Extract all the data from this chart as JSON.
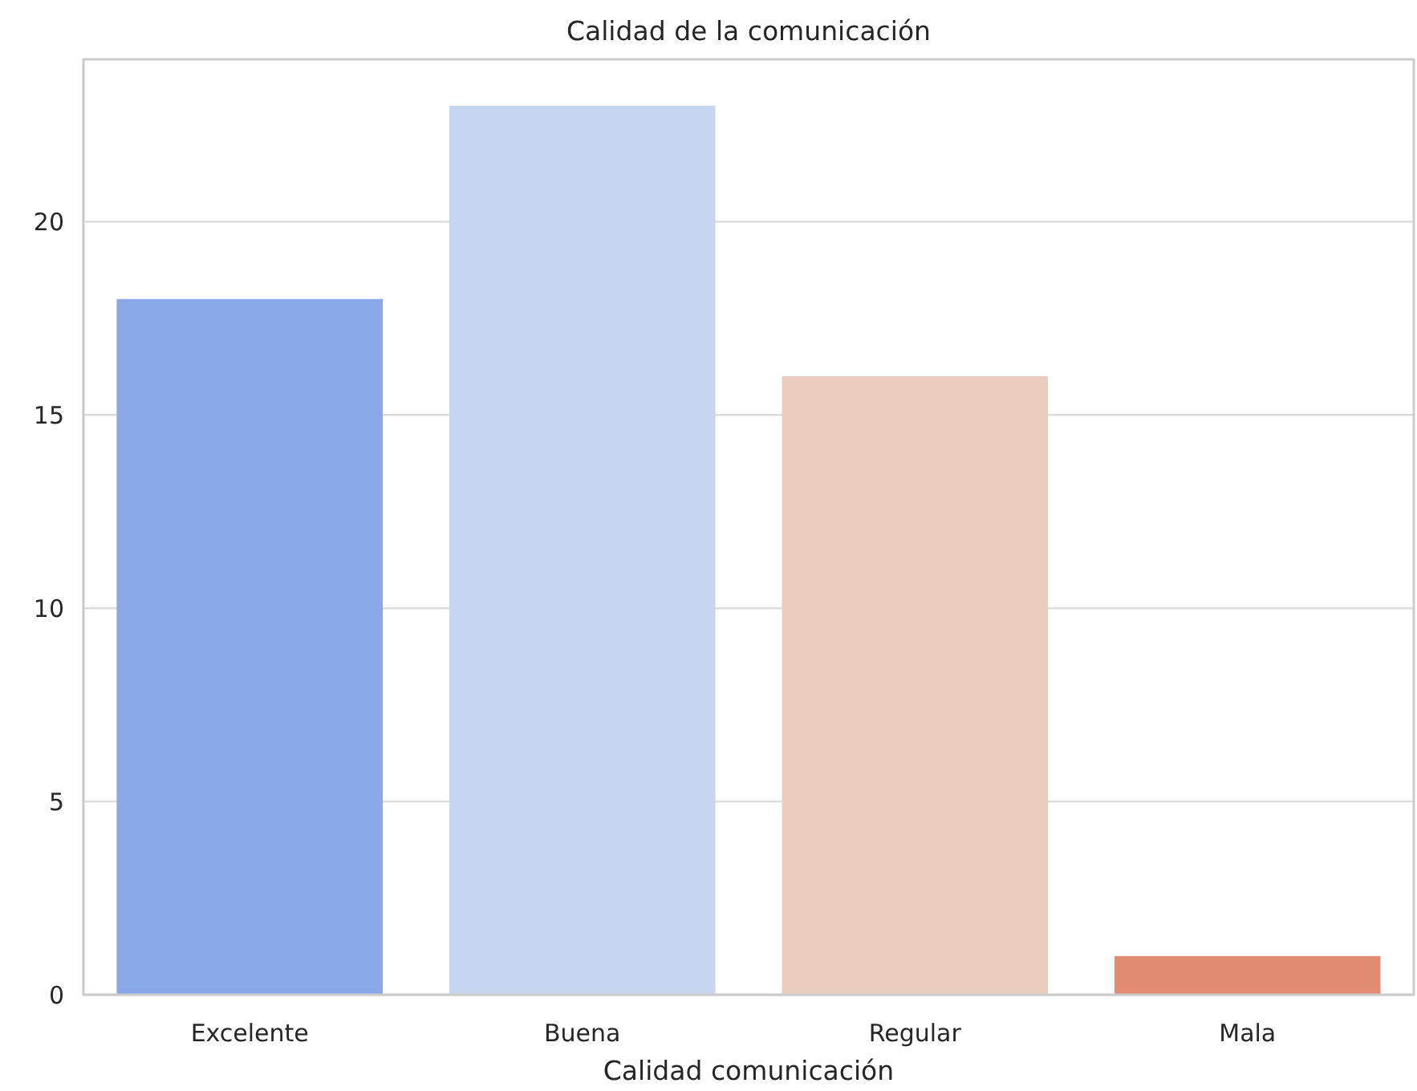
{
  "chart_data": {
    "type": "bar",
    "title": "Calidad de la comunicación",
    "xlabel": "Calidad comunicación",
    "categories": [
      "Excelente",
      "Buena",
      "Regular",
      "Mala"
    ],
    "values": [
      18,
      23,
      16,
      1
    ],
    "colors": [
      "#8aa8e8",
      "#c6d5f0",
      "#eacdbe",
      "#e08b72"
    ],
    "ylim": [
      0,
      24.2
    ],
    "yticks": [
      0,
      5,
      10,
      15,
      20
    ],
    "grid": "y"
  }
}
